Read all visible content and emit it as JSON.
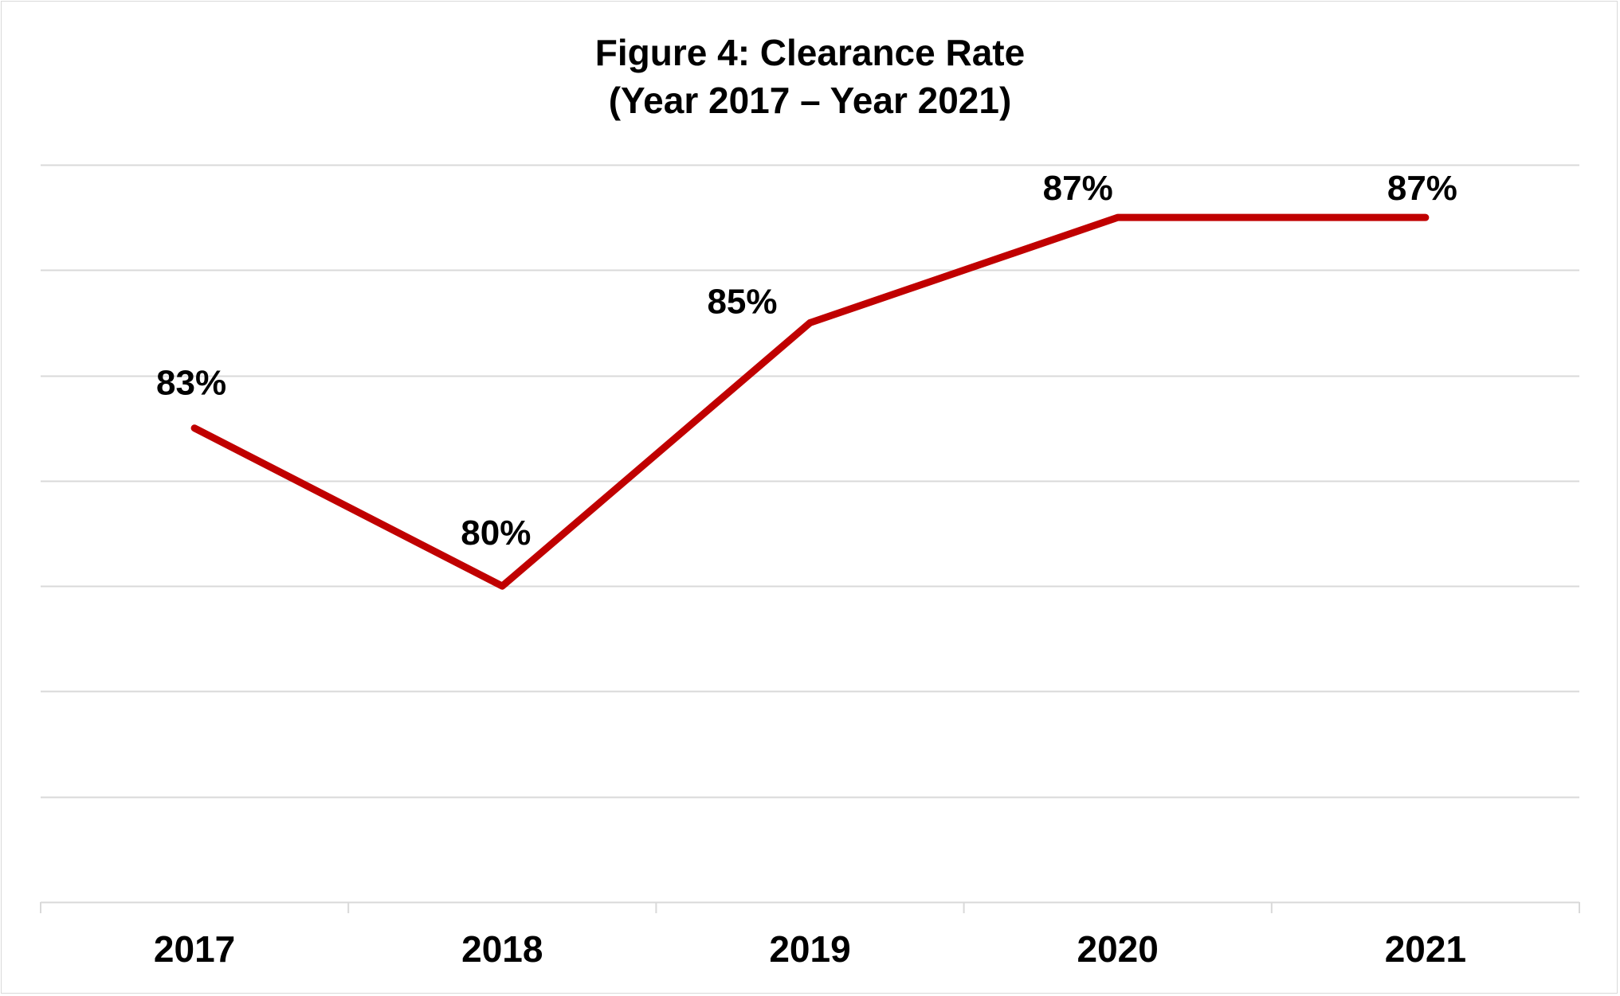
{
  "colors": {
    "line": "#c00000",
    "gridline": "#d9d9d9",
    "text": "#000000",
    "background": "#ffffff"
  },
  "chart_data": {
    "type": "line",
    "title": "Figure 4: Clearance Rate",
    "subtitle": "(Year 2017 – Year 2021)",
    "xlabel": "",
    "ylabel": "",
    "categories": [
      "2017",
      "2018",
      "2019",
      "2020",
      "2021"
    ],
    "series": [
      {
        "values": [
          83,
          80,
          85,
          87,
          87
        ],
        "labels": [
          "83%",
          "80%",
          "85%",
          "87%",
          "87%"
        ],
        "color": "#c00000"
      }
    ],
    "ylim": [
      74,
      88
    ],
    "ytick_step": 2,
    "y_axis_labels_shown": false,
    "grid": true,
    "legend": "none"
  }
}
